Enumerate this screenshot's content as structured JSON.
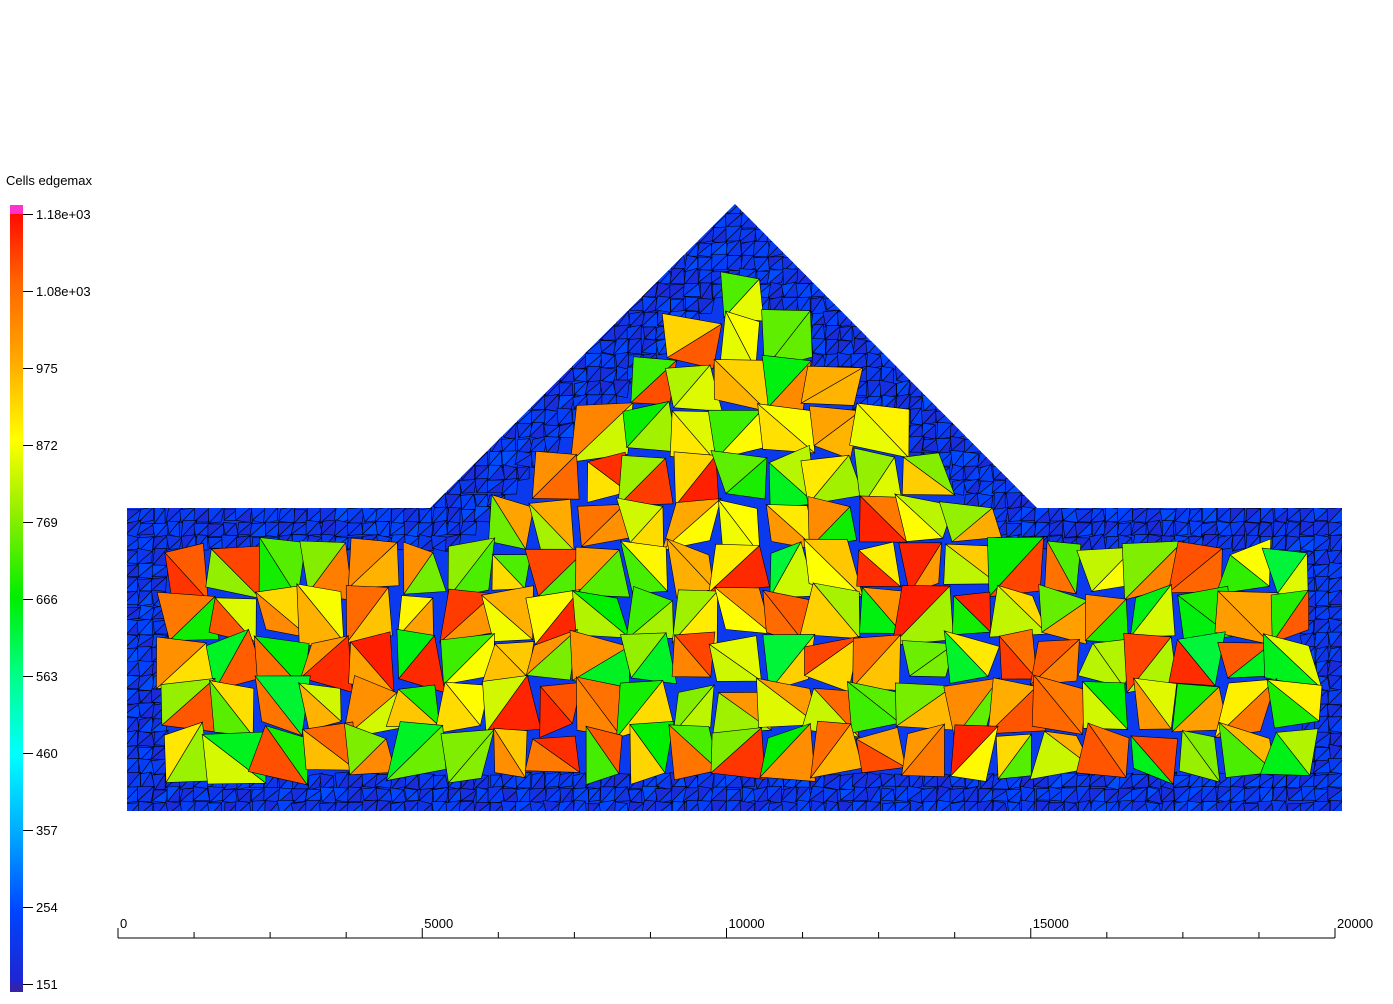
{
  "legend": {
    "title": "Cells edgemax",
    "ticks": [
      "1.18e+03",
      "1.08e+03",
      "975",
      "872",
      "769",
      "666",
      "563",
      "460",
      "357",
      "254",
      "151"
    ],
    "range": [
      151,
      1180
    ],
    "colormap": [
      "#2222cc",
      "#0044ff",
      "#00aaff",
      "#00ffff",
      "#00ff88",
      "#00ee00",
      "#88ee00",
      "#ffff00",
      "#ffaa00",
      "#ff6600",
      "#ff0000"
    ],
    "above_range_color": "#ff33cc",
    "below_range_color": "#3322aa"
  },
  "x_axis": {
    "labels": [
      "0",
      "5000",
      "10000",
      "15000",
      "20000"
    ],
    "range": [
      0,
      20000
    ],
    "minor_ticks_per_major": 4
  },
  "mesh": {
    "outline_color": "#000000",
    "boundary_value": 220,
    "interior_value_range": [
      620,
      1150
    ]
  }
}
